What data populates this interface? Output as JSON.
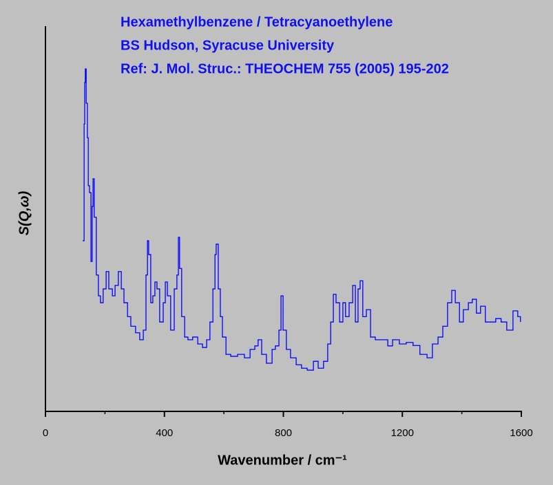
{
  "chart_data": {
    "type": "line",
    "title_lines": [
      "Hexamethylbenzene / Tetracyanoethylene",
      "BS Hudson, Syracuse University",
      "Ref: J. Mol. Struc.: THEOCHEM 755 (2005) 195-202"
    ],
    "x_label": "Wavenumber / cm⁻¹",
    "y_label": "S(Q,ω)",
    "step": true,
    "color": "#0000ff",
    "xlim": [
      0,
      1600
    ],
    "xticks": [
      0,
      400,
      800,
      1200,
      1600
    ],
    "xminorticks": [
      200,
      600,
      1000,
      1400
    ],
    "ylim": [
      0,
      100
    ],
    "series": [
      {
        "name": "S(Q,ω)",
        "color": "#0000ff",
        "x": [
          125,
          130,
          132,
          134,
          137,
          141,
          144,
          148,
          153,
          157,
          160,
          164,
          171,
          178,
          185,
          194,
          204,
          213,
          225,
          234,
          245,
          255,
          264,
          276,
          287,
          303,
          317,
          329,
          338,
          343,
          347,
          354,
          361,
          368,
          375,
          384,
          396,
          403,
          410,
          421,
          433,
          442,
          447,
          451,
          458,
          468,
          479,
          495,
          512,
          528,
          542,
          553,
          563,
          570,
          574,
          581,
          588,
          595,
          607,
          623,
          646,
          669,
          688,
          704,
          715,
          727,
          743,
          762,
          773,
          785,
          792,
          799,
          810,
          824,
          843,
          861,
          880,
          901,
          917,
          935,
          949,
          959,
          968,
          977,
          989,
          1000,
          1009,
          1021,
          1033,
          1042,
          1051,
          1058,
          1067,
          1079,
          1093,
          1109,
          1132,
          1151,
          1167,
          1190,
          1213,
          1236,
          1259,
          1283,
          1301,
          1320,
          1336,
          1352,
          1366,
          1378,
          1392,
          1405,
          1422,
          1435,
          1449,
          1463,
          1479,
          1496,
          1514,
          1532,
          1551,
          1572,
          1588,
          1597
        ],
        "values": [
          44.3,
          74.6,
          85.4,
          88.9,
          80,
          71,
          58.6,
          56.8,
          38.9,
          53.2,
          60.4,
          50.4,
          35.4,
          30,
          28.2,
          31.8,
          36.3,
          31.8,
          30,
          32.7,
          36.3,
          31.8,
          28.2,
          24.6,
          22.1,
          20.4,
          18.6,
          21.1,
          35.4,
          44.3,
          40.7,
          28.2,
          30,
          33.6,
          31.8,
          23.2,
          28.2,
          33.6,
          30,
          21.1,
          31.8,
          35.4,
          45.2,
          37.1,
          24.6,
          19.3,
          18.6,
          19.3,
          17.5,
          16.6,
          18.6,
          23.2,
          31.8,
          40.7,
          43.4,
          31.8,
          24.6,
          19.3,
          14.8,
          14.3,
          14.8,
          13.9,
          16.1,
          17,
          18.6,
          14.8,
          12.5,
          16.1,
          17,
          21.1,
          30,
          21.1,
          16.1,
          13.9,
          12.1,
          11.2,
          10.7,
          13,
          11.2,
          13,
          17.5,
          23.2,
          30.4,
          28.2,
          23.2,
          28.2,
          24.6,
          28.2,
          32.7,
          23.2,
          31.8,
          33.9,
          24.6,
          26.4,
          19.3,
          18.6,
          18.6,
          17,
          18.6,
          17.5,
          17.9,
          17.1,
          14.8,
          13.9,
          17.5,
          19.3,
          22.1,
          28.2,
          31.4,
          28.2,
          23.2,
          26.4,
          28.2,
          29.1,
          25.5,
          27.3,
          23.2,
          23.2,
          24.1,
          23.2,
          21.1,
          26.1,
          24.6,
          23.2
        ]
      }
    ]
  }
}
